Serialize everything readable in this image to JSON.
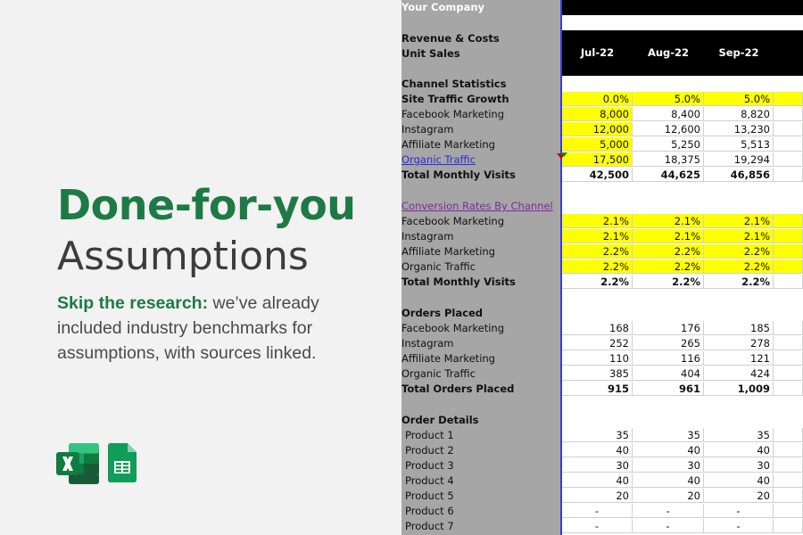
{
  "promo": {
    "headline_1": "Done-for-you",
    "headline_2": "Assumptions",
    "desc_strong": "Skip the research:",
    "desc_rest": " we’ve already included industry benchmarks for assumptions, with sources linked.",
    "icons": [
      "excel-icon",
      "google-sheets-icon"
    ],
    "colors": {
      "accent_green": "#1e7a45",
      "headline_dark": "#3c3c3c",
      "yellow_input": "#ffff00"
    }
  },
  "sheet": {
    "company": "Your Company",
    "section_revenue": "Revenue & Costs",
    "unit_sales": "Unit Sales",
    "months": [
      "Jul-22",
      "Aug-22",
      "Sep-22"
    ],
    "channel_stats": {
      "title": "Channel Statistics",
      "rows": [
        {
          "label": "Site Traffic Growth",
          "values": [
            "0.0%",
            "5.0%",
            "5.0%"
          ]
        },
        {
          "label": "Facebook Marketing",
          "values": [
            "8,000",
            "8,400",
            "8,820"
          ]
        },
        {
          "label": "Instagram",
          "values": [
            "12,000",
            "12,600",
            "13,230"
          ]
        },
        {
          "label": "Affiliate Marketing",
          "values": [
            "5,000",
            "5,250",
            "5,513"
          ]
        },
        {
          "label": "Organic Traffic",
          "values": [
            "17,500",
            "18,375",
            "19,294"
          ]
        },
        {
          "label": "Total Monthly Visits",
          "values": [
            "42,500",
            "44,625",
            "46,856"
          ]
        }
      ]
    },
    "conversion": {
      "title": "Conversion Rates By Channel",
      "rows": [
        {
          "label": "Facebook Marketing",
          "values": [
            "2.1%",
            "2.1%",
            "2.1%"
          ]
        },
        {
          "label": "Instagram",
          "values": [
            "2.1%",
            "2.1%",
            "2.1%"
          ]
        },
        {
          "label": "Affiliate Marketing",
          "values": [
            "2.2%",
            "2.2%",
            "2.2%"
          ]
        },
        {
          "label": "Organic Traffic",
          "values": [
            "2.2%",
            "2.2%",
            "2.2%"
          ]
        },
        {
          "label": "Total Monthly Visits",
          "values": [
            "2.2%",
            "2.2%",
            "2.2%"
          ]
        }
      ]
    },
    "orders": {
      "title": "Orders Placed",
      "rows": [
        {
          "label": "Facebook Marketing",
          "values": [
            "168",
            "176",
            "185"
          ]
        },
        {
          "label": "Instagram",
          "values": [
            "252",
            "265",
            "278"
          ]
        },
        {
          "label": "Affiliate Marketing",
          "values": [
            "110",
            "116",
            "121"
          ]
        },
        {
          "label": "Organic Traffic",
          "values": [
            "385",
            "404",
            "424"
          ]
        },
        {
          "label": "Total Orders Placed",
          "values": [
            "915",
            "961",
            "1,009"
          ]
        }
      ]
    },
    "order_details": {
      "title": "Order Details",
      "rows": [
        {
          "label": "Product 1",
          "values": [
            "35",
            "35",
            "35"
          ]
        },
        {
          "label": "Product 2",
          "values": [
            "40",
            "40",
            "40"
          ]
        },
        {
          "label": "Product 3",
          "values": [
            "30",
            "30",
            "30"
          ]
        },
        {
          "label": "Product 4",
          "values": [
            "40",
            "40",
            "40"
          ]
        },
        {
          "label": "Product 5",
          "values": [
            "20",
            "20",
            "20"
          ]
        },
        {
          "label": "Product 6",
          "values": [
            "-",
            "-",
            "-"
          ]
        },
        {
          "label": "Product 7",
          "values": [
            "-",
            "-",
            "-"
          ]
        }
      ]
    }
  }
}
